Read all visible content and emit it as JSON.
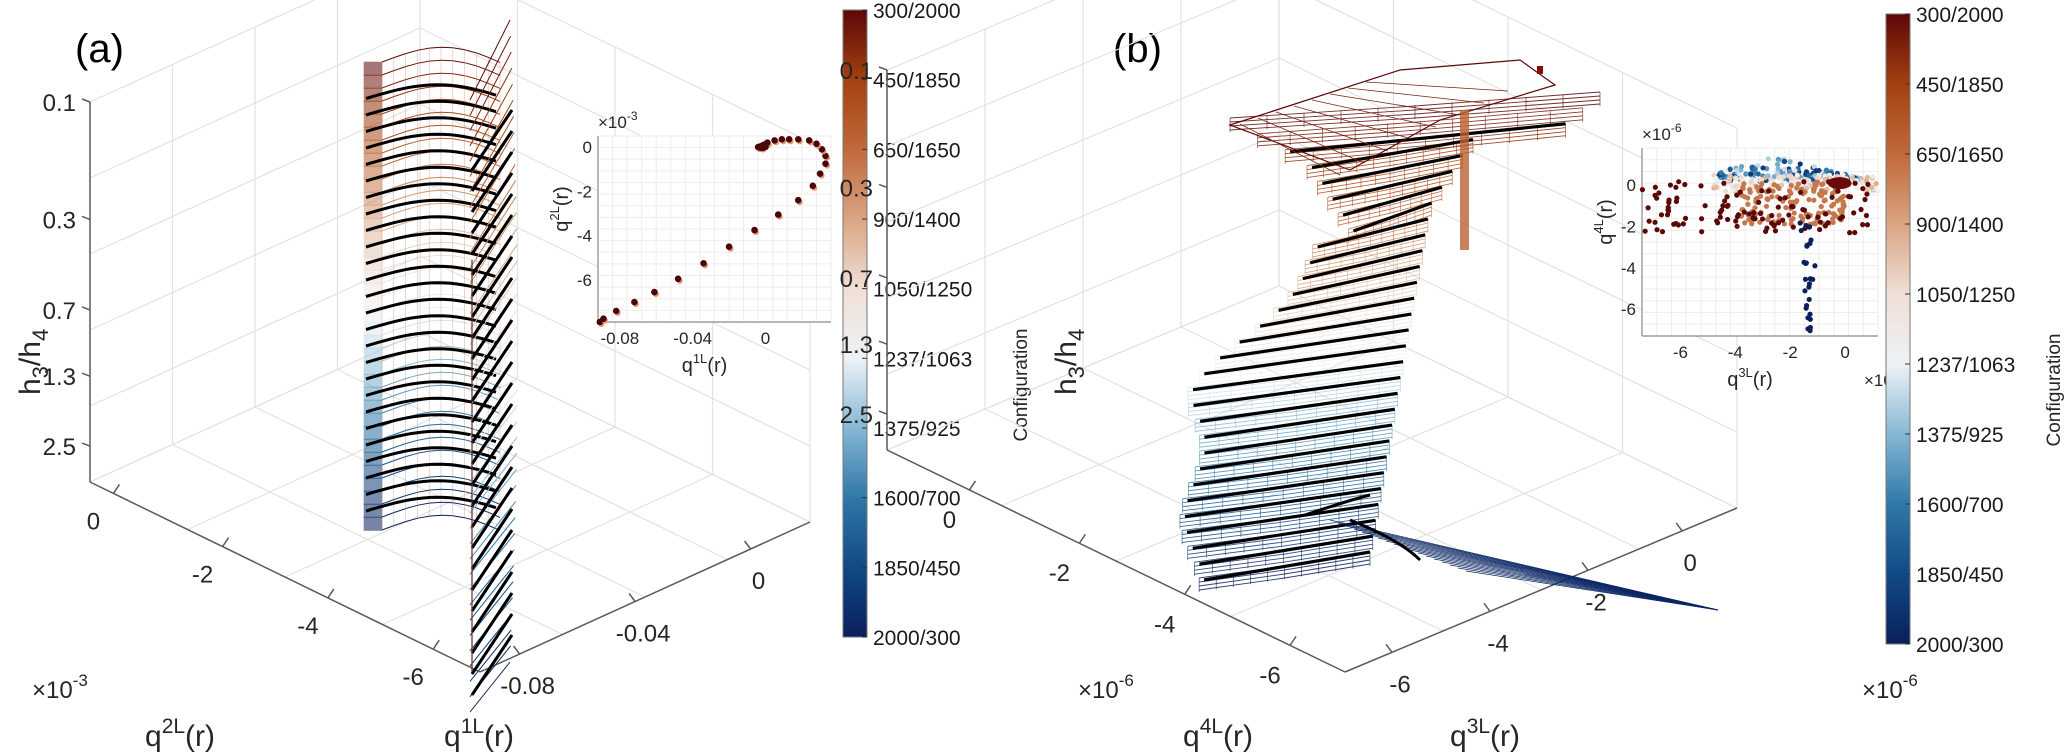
{
  "figure": {
    "colormap": [
      "#053061",
      "#2166ac",
      "#4393c3",
      "#92c5de",
      "#d1e5f0",
      "#f7f7f7",
      "#fddbc7",
      "#f4a582",
      "#d6604d",
      "#b2182b",
      "#67001f"
    ],
    "colormap_stops_display": [
      "#0a1f5c",
      "#114a86",
      "#2f78a8",
      "#86b8d5",
      "#eef2f5",
      "#f0dfd6",
      "#d9a582",
      "#c0693a",
      "#a3410f",
      "#5c0808"
    ]
  },
  "chart_data": [
    {
      "id": "a",
      "panel_label": "(a)",
      "type": "surface3d",
      "xlabel_base": "q",
      "xlabel_sup": "1L",
      "xlabel_tail": "(r)",
      "ylabel_base": "q",
      "ylabel_sup": "2L",
      "ylabel_tail": "(r)",
      "zlabel_h3": "h",
      "zlabel_sub1": "3",
      "zlabel_mid": "/h",
      "zlabel_sub2": "4",
      "x_ticks": [
        "-0.08",
        "-0.04",
        "0"
      ],
      "y_ticks": [
        "0",
        "-2",
        "-4",
        "-6"
      ],
      "y_exponent_base": "×10",
      "y_exponent": "-3",
      "z_ticks": [
        "0.1",
        "0.3",
        "0.7",
        "1.3",
        "2.5"
      ],
      "zlim": [
        0.1,
        3.5
      ],
      "zscale": "log",
      "colorbar": {
        "label": "Configuration",
        "ticks": [
          "300/2000",
          "450/1850",
          "650/1650",
          "900/1400",
          "1050/1250",
          "1237/1063",
          "1375/925",
          "1600/700",
          "1850/450",
          "2000/300"
        ]
      },
      "inset": {
        "type": "scatter",
        "xlabel_base": "q",
        "xlabel_sup": "1L",
        "xlabel_tail": "(r)",
        "ylabel_base": "q",
        "ylabel_sup": "2L",
        "ylabel_tail": "(r)",
        "x_ticks": [
          "-0.08",
          "-0.04",
          "0"
        ],
        "y_ticks": [
          "0",
          "-2",
          "-4",
          "-6"
        ],
        "y_exponent_base": "×10",
        "y_exponent": "-3",
        "xlim": [
          -0.092,
          0.036
        ],
        "ylim": [
          -7.9,
          0.5
        ],
        "points": [
          [
            -0.091,
            -7.9
          ],
          [
            -0.089,
            -7.75
          ],
          [
            -0.082,
            -7.4
          ],
          [
            -0.072,
            -7.0
          ],
          [
            -0.061,
            -6.55
          ],
          [
            -0.048,
            -5.95
          ],
          [
            -0.034,
            -5.25
          ],
          [
            -0.02,
            -4.5
          ],
          [
            -0.006,
            -3.75
          ],
          [
            0.007,
            -3.05
          ],
          [
            0.018,
            -2.4
          ],
          [
            0.026,
            -1.75
          ],
          [
            0.03,
            -1.2
          ],
          [
            0.033,
            -0.75
          ],
          [
            0.033,
            -0.4
          ],
          [
            0.031,
            -0.1
          ],
          [
            0.028,
            0.15
          ],
          [
            0.024,
            0.3
          ],
          [
            0.018,
            0.35
          ],
          [
            0.013,
            0.35
          ],
          [
            0.009,
            0.35
          ],
          [
            0.005,
            0.3
          ],
          [
            0.001,
            0.2
          ],
          [
            -0.001,
            0.1
          ],
          [
            -0.002,
            0.05
          ],
          [
            -0.003,
            0.0
          ],
          [
            -0.004,
            0.0
          ],
          [
            -0.002,
            -0.02
          ]
        ]
      }
    },
    {
      "id": "b",
      "panel_label": "(b)",
      "type": "surface3d",
      "xlabel_base": "q",
      "xlabel_sup": "3L",
      "xlabel_tail": "(r)",
      "ylabel_base": "q",
      "ylabel_sup": "4L",
      "ylabel_tail": "(r)",
      "zlabel_h3": "h",
      "zlabel_sub1": "3",
      "zlabel_mid": "/h",
      "zlabel_sub2": "4",
      "x_ticks": [
        "-6",
        "-4",
        "-2",
        "0"
      ],
      "x_exponent_base": "×10",
      "x_exponent": "-6",
      "y_ticks": [
        "0",
        "-2",
        "-4",
        "-6"
      ],
      "y_exponent_base": "×10",
      "y_exponent": "-6",
      "z_ticks": [
        "0.1",
        "0.3",
        "0.7",
        "1.3",
        "2.5"
      ],
      "zlim": [
        0.1,
        3.5
      ],
      "zscale": "log",
      "colorbar": {
        "label": "Configuration",
        "ticks": [
          "300/2000",
          "450/1850",
          "650/1650",
          "900/1400",
          "1050/1250",
          "1237/1063",
          "1375/925",
          "1600/700",
          "1850/450",
          "2000/300"
        ]
      },
      "inset": {
        "type": "scatter",
        "xlabel_base": "q",
        "xlabel_sup": "3L",
        "xlabel_tail": "(r)",
        "ylabel_base": "q",
        "ylabel_sup": "4L",
        "ylabel_tail": "(r)",
        "x_ticks": [
          "-6",
          "-4",
          "-2",
          "0"
        ],
        "y_ticks": [
          "0",
          "-2",
          "-4",
          "-6"
        ],
        "x_exponent_base": "×10",
        "x_exponent": "-6",
        "y_exponent_base": "×10",
        "y_exponent": "-6",
        "xlim": [
          -7.4,
          1.2
        ],
        "ylim": [
          -7.3,
          1.8
        ],
        "clusters": [
          {
            "color_t": 0.0,
            "desc": "blue band top",
            "x": [
              -4.6,
              0.6
            ],
            "y": [
              0.2,
              1.5
            ]
          },
          {
            "color_t": 0.5,
            "desc": "light band",
            "x": [
              -4.8,
              1.2
            ],
            "y": [
              -0.3,
              0.5
            ]
          },
          {
            "color_t": 0.75,
            "desc": "orange band",
            "x": [
              -3.8,
              0.0
            ],
            "y": [
              -1.9,
              0.2
            ]
          },
          {
            "color_t": 1.0,
            "desc": "dark red scatter",
            "x": [
              -7.4,
              0.9
            ],
            "y": [
              -2.3,
              0.2
            ]
          },
          {
            "color_t": 0.0,
            "desc": "dark blue tail",
            "x": [
              -1.6,
              -0.6
            ],
            "y": [
              -7.2,
              -1.8
            ]
          }
        ]
      }
    }
  ]
}
